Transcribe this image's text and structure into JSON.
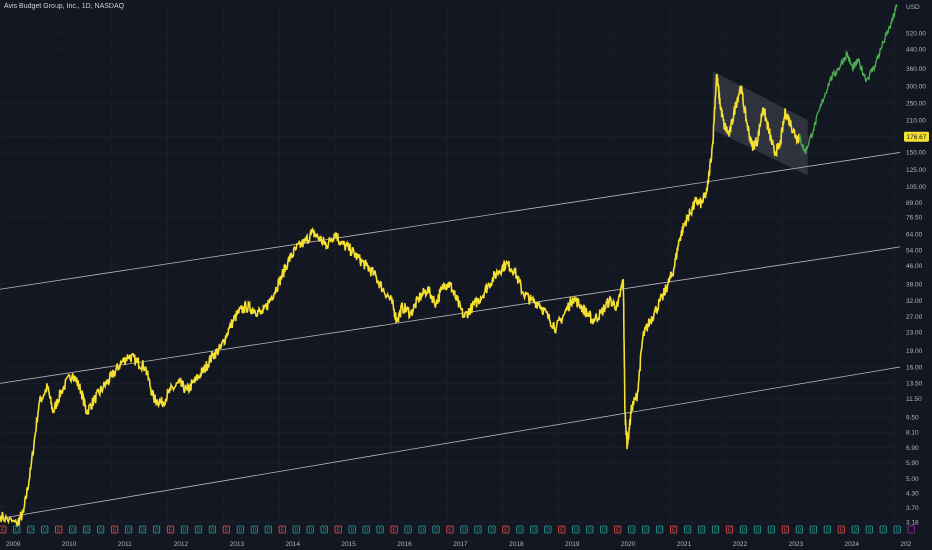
{
  "symbol_title": "Avis Budget Group, Inc., 1D, NASDAQ",
  "currency": "USD",
  "last_price": "176.67",
  "colors": {
    "background": "#131722",
    "price_line": "#f5e031",
    "projection_line": "#4caf50",
    "channel_line": "#d1d4dc",
    "grid": "#1e222d",
    "price_badge_bg": "#f5e031",
    "event_dividend": "#26a69a",
    "event_earnings": "#ef5350",
    "event_split": "#9c27b0"
  },
  "chart_data": {
    "type": "line",
    "y_scale": "log",
    "ylim": [
      3.18,
      720
    ],
    "xlim": [
      2009.0,
      2025.1
    ],
    "y_ticks": [
      "3.18",
      "3.70",
      "4.30",
      "5.00",
      "5.90",
      "6.90",
      "8.10",
      "9.50",
      "11.50",
      "13.50",
      "16.00",
      "19.00",
      "23.00",
      "27.00",
      "32.00",
      "38.00",
      "46.00",
      "54.00",
      "64.00",
      "76.50",
      "89.00",
      "105.00",
      "125.00",
      "150.00",
      "176.67",
      "210.00",
      "250.00",
      "300.00",
      "360.00",
      "440.00",
      "520.00"
    ],
    "x_ticks": [
      "2009",
      "2010",
      "2011",
      "2012",
      "2013",
      "2014",
      "2015",
      "2016",
      "2017",
      "2018",
      "2019",
      "2020",
      "2021",
      "2022",
      "2023",
      "2024",
      "202"
    ],
    "series": [
      {
        "role": "price",
        "points": [
          [
            2009.0,
            3.4
          ],
          [
            2009.3,
            3.1
          ],
          [
            2009.42,
            3.5
          ],
          [
            2009.55,
            5.5
          ],
          [
            2009.7,
            11.0
          ],
          [
            2009.85,
            13.0
          ],
          [
            2009.95,
            10.0
          ],
          [
            2010.1,
            12.5
          ],
          [
            2010.3,
            15.0
          ],
          [
            2010.45,
            12.5
          ],
          [
            2010.55,
            10.0
          ],
          [
            2010.7,
            11.5
          ],
          [
            2010.85,
            13.0
          ],
          [
            2011.0,
            14.5
          ],
          [
            2011.15,
            16.5
          ],
          [
            2011.3,
            18.0
          ],
          [
            2011.45,
            17.0
          ],
          [
            2011.6,
            16.0
          ],
          [
            2011.75,
            11.5
          ],
          [
            2011.9,
            11.0
          ],
          [
            2012.05,
            12.5
          ],
          [
            2012.2,
            13.5
          ],
          [
            2012.35,
            12.5
          ],
          [
            2012.5,
            14.0
          ],
          [
            2012.65,
            15.5
          ],
          [
            2012.8,
            18.0
          ],
          [
            2012.95,
            19.5
          ],
          [
            2013.1,
            24.0
          ],
          [
            2013.25,
            28.0
          ],
          [
            2013.4,
            30.0
          ],
          [
            2013.55,
            29.0
          ],
          [
            2013.7,
            28.0
          ],
          [
            2013.85,
            33.0
          ],
          [
            2014.0,
            39.0
          ],
          [
            2014.15,
            48.0
          ],
          [
            2014.3,
            55.0
          ],
          [
            2014.45,
            59.0
          ],
          [
            2014.6,
            65.0
          ],
          [
            2014.75,
            60.0
          ],
          [
            2014.85,
            57.0
          ],
          [
            2015.0,
            65.0
          ],
          [
            2015.1,
            58.0
          ],
          [
            2015.25,
            55.0
          ],
          [
            2015.4,
            50.0
          ],
          [
            2015.55,
            46.0
          ],
          [
            2015.7,
            42.0
          ],
          [
            2015.85,
            36.0
          ],
          [
            2016.0,
            32.0
          ],
          [
            2016.1,
            26.0
          ],
          [
            2016.2,
            30.0
          ],
          [
            2016.35,
            28.0
          ],
          [
            2016.5,
            33.0
          ],
          [
            2016.65,
            36.0
          ],
          [
            2016.8,
            31.0
          ],
          [
            2016.95,
            38.0
          ],
          [
            2017.05,
            38.0
          ],
          [
            2017.15,
            33.0
          ],
          [
            2017.3,
            27.0
          ],
          [
            2017.45,
            30.0
          ],
          [
            2017.6,
            33.0
          ],
          [
            2017.75,
            38.0
          ],
          [
            2017.9,
            43.0
          ],
          [
            2018.05,
            47.0
          ],
          [
            2018.2,
            44.0
          ],
          [
            2018.35,
            35.0
          ],
          [
            2018.5,
            32.0
          ],
          [
            2018.65,
            31.0
          ],
          [
            2018.8,
            27.0
          ],
          [
            2018.95,
            24.0
          ],
          [
            2019.1,
            28.0
          ],
          [
            2019.25,
            33.0
          ],
          [
            2019.4,
            30.0
          ],
          [
            2019.5,
            28.0
          ],
          [
            2019.6,
            26.0
          ],
          [
            2019.75,
            28.0
          ],
          [
            2019.9,
            32.0
          ],
          [
            2020.05,
            30.0
          ],
          [
            2020.15,
            40.0
          ],
          [
            2020.18,
            10.0
          ],
          [
            2020.22,
            7.0
          ],
          [
            2020.3,
            10.5
          ],
          [
            2020.4,
            12.0
          ],
          [
            2020.5,
            22.0
          ],
          [
            2020.6,
            25.0
          ],
          [
            2020.7,
            28.0
          ],
          [
            2020.85,
            33.0
          ],
          [
            2020.95,
            38.0
          ],
          [
            2021.05,
            44.0
          ],
          [
            2021.15,
            60.0
          ],
          [
            2021.25,
            72.0
          ],
          [
            2021.35,
            80.0
          ],
          [
            2021.45,
            90.0
          ],
          [
            2021.55,
            88.0
          ],
          [
            2021.65,
            100.0
          ],
          [
            2021.75,
            165.0
          ],
          [
            2021.82,
            340.0
          ],
          [
            2021.88,
            250.0
          ],
          [
            2021.95,
            200.0
          ],
          [
            2022.05,
            180.0
          ],
          [
            2022.15,
            240.0
          ],
          [
            2022.25,
            300.0
          ],
          [
            2022.35,
            210.0
          ],
          [
            2022.45,
            160.0
          ],
          [
            2022.55,
            170.0
          ],
          [
            2022.65,
            240.0
          ],
          [
            2022.75,
            190.0
          ],
          [
            2022.85,
            150.0
          ],
          [
            2022.95,
            160.0
          ],
          [
            2023.05,
            230.0
          ],
          [
            2023.15,
            200.0
          ],
          [
            2023.25,
            175.0
          ],
          [
            2023.3,
            176.67
          ]
        ]
      },
      {
        "role": "projection",
        "points": [
          [
            2023.3,
            176.67
          ],
          [
            2023.4,
            150.0
          ],
          [
            2023.55,
            190.0
          ],
          [
            2023.7,
            250.0
          ],
          [
            2023.85,
            320.0
          ],
          [
            2024.0,
            360.0
          ],
          [
            2024.15,
            420.0
          ],
          [
            2024.25,
            360.0
          ],
          [
            2024.35,
            390.0
          ],
          [
            2024.5,
            320.0
          ],
          [
            2024.65,
            370.0
          ],
          [
            2024.8,
            470.0
          ],
          [
            2024.95,
            580.0
          ],
          [
            2025.05,
            700.0
          ]
        ]
      }
    ],
    "channel_lines": [
      {
        "start": [
          2009.0,
          36.0
        ],
        "end": [
          2025.1,
          150.0
        ]
      },
      {
        "start": [
          2009.0,
          13.5
        ],
        "end": [
          2025.1,
          56.0
        ]
      },
      {
        "start": [
          2009.0,
          3.3
        ],
        "end": [
          2025.1,
          16.0
        ]
      }
    ],
    "shaded_box": [
      [
        2021.75,
        350.0
      ],
      [
        2023.45,
        210.0
      ],
      [
        2023.45,
        118.0
      ],
      [
        2021.75,
        190.0
      ]
    ],
    "events": {
      "start_year": 2009.05,
      "step_years": 0.25,
      "count": 66,
      "earnings_indices": [
        0,
        4,
        8,
        12,
        16,
        20,
        24,
        28,
        32,
        36,
        40,
        44,
        48,
        52,
        56,
        60
      ],
      "split_index": 65,
      "dividend_letter": "D",
      "earnings_letter": "E"
    }
  }
}
